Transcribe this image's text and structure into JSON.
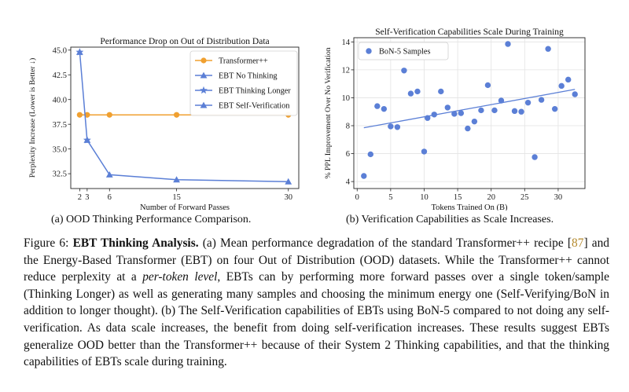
{
  "chart_data": [
    {
      "type": "line",
      "title": "Performance Drop on Out of Distribution Data",
      "xlabel": "Number of Forward Passes",
      "ylabel": "Perplexity Increase (Lower is Better ↓)",
      "xticks": [
        2,
        3,
        6,
        15,
        30
      ],
      "yticks": [
        32.5,
        35.0,
        37.5,
        40.0,
        42.5,
        45.0
      ],
      "xlim": [
        0.8,
        31.4
      ],
      "ylim": [
        31.0,
        45.3
      ],
      "grid": false,
      "legend": "top-right",
      "series": [
        {
          "name": "Transformer++",
          "marker": "circle",
          "color": "#f0a030",
          "x": [
            2,
            3,
            6,
            15,
            30
          ],
          "y": [
            38.45,
            38.45,
            38.45,
            38.45,
            38.45
          ]
        },
        {
          "name": "EBT No Thinking",
          "marker": "triangle",
          "color": "#5b7fd6",
          "x": [
            2
          ],
          "y": [
            44.8
          ]
        },
        {
          "name": "EBT Thinking Longer",
          "marker": "star",
          "color": "#5b7fd6",
          "x": [
            2,
            3
          ],
          "y": [
            44.8,
            35.9
          ]
        },
        {
          "name": "EBT Self-Verification",
          "marker": "triangle",
          "color": "#5b7fd6",
          "x": [
            3,
            6,
            15,
            30
          ],
          "y": [
            35.9,
            32.4,
            31.9,
            31.7
          ]
        }
      ]
    },
    {
      "type": "scatter",
      "title": "Self-Verification Capabilities Scale During Training",
      "xlabel": "Tokens Trained On (B)",
      "ylabel": "% PPL Improvement Over No Verification",
      "xticks": [
        0,
        5,
        10,
        15,
        20,
        25,
        30
      ],
      "yticks": [
        4,
        6,
        8,
        10,
        12,
        14
      ],
      "xlim": [
        -0.5,
        34
      ],
      "ylim": [
        3.5,
        14.3
      ],
      "grid": true,
      "legend": "top-left",
      "series": [
        {
          "name": "BoN-5 Samples",
          "color": "#5b7fd6",
          "x": [
            1,
            2,
            3,
            4,
            5,
            6,
            7,
            8,
            9,
            10,
            10.5,
            11.5,
            12.5,
            13.5,
            14.5,
            15.5,
            16.5,
            17.5,
            18.5,
            19.5,
            20.5,
            21.5,
            22.5,
            23.5,
            24.5,
            25.5,
            26.5,
            27.5,
            28.5,
            29.5,
            30.5,
            31.5,
            32.5
          ],
          "y": [
            4.4,
            5.95,
            9.4,
            9.2,
            7.95,
            7.9,
            11.95,
            10.3,
            10.45,
            6.15,
            8.55,
            8.8,
            10.45,
            9.3,
            8.85,
            8.9,
            7.8,
            8.3,
            9.1,
            10.9,
            9.1,
            9.8,
            13.85,
            9.05,
            9.0,
            9.65,
            5.75,
            9.85,
            13.5,
            9.2,
            10.85,
            11.3,
            10.25
          ]
        },
        {
          "name": "",
          "kind": "trend",
          "color": "#5b7fd6",
          "x": [
            1,
            32.5
          ],
          "y": [
            7.85,
            10.6
          ]
        }
      ]
    }
  ],
  "subcaptions": {
    "a": "(a) OOD Thinking Performance Comparison.",
    "b": "(b) Verification Capabilities as Scale Increases."
  },
  "caption": {
    "figure_label": "Figure 6:",
    "bold_title": "EBT Thinking Analysis.",
    "text_1": "(a) Mean performance degradation of the standard Transformer++ recipe [",
    "citation": "87",
    "text_2": "] and the Energy-Based Transformer (EBT) on four Out of Distribution (OOD) datasets. While the Transformer++ cannot reduce perplexity at a ",
    "italic": "per-token level",
    "text_3": ", EBTs can by performing more forward passes over a single token/sample (Thinking Longer) as well as generating many samples and choosing the minimum energy one (Self-Verifying/BoN in addition to longer thought). (b) The Self-Verification capabilities of EBTs using BoN-5 compared to not doing any self-verification. As data scale increases, the benefit from doing self-verification increases. These results suggest EBTs generalize OOD better than the Transformer++ because of their System 2 Thinking capabilities, and that the thinking capabilities of EBTs scale during training."
  }
}
